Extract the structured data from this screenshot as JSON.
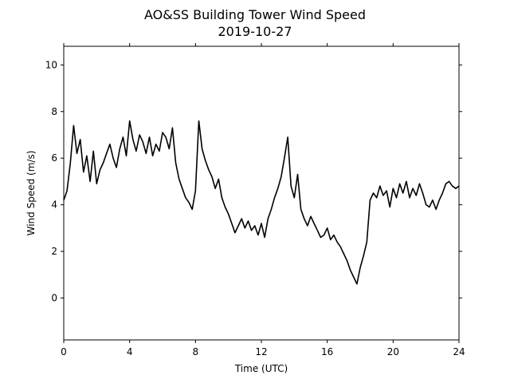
{
  "chart_data": {
    "type": "line",
    "title": "AO&SS Building Tower Wind Speed",
    "subtitle": "2019-10-27",
    "xlabel": "Time (UTC)",
    "ylabel": "Wind Speed (m/s)",
    "xlim": [
      0,
      24
    ],
    "ylim": [
      -1.8,
      10.8
    ],
    "xticks": [
      0,
      4,
      8,
      12,
      16,
      20,
      24
    ],
    "yticks": [
      0,
      2,
      4,
      6,
      8,
      10
    ],
    "grid": false,
    "line_color": "#000000",
    "series": [
      {
        "x": [
          0.0,
          0.2,
          0.4,
          0.6,
          0.8,
          1.0,
          1.2,
          1.4,
          1.6,
          1.8,
          2.0,
          2.2,
          2.4,
          2.6,
          2.8,
          3.0,
          3.2,
          3.4,
          3.6,
          3.8,
          4.0,
          4.2,
          4.4,
          4.6,
          4.8,
          5.0,
          5.2,
          5.4,
          5.6,
          5.8,
          6.0,
          6.2,
          6.4,
          6.6,
          6.8,
          7.0,
          7.2,
          7.4,
          7.6,
          7.8,
          8.0,
          8.2,
          8.4,
          8.6,
          8.8,
          9.0,
          9.2,
          9.4,
          9.6,
          9.8,
          10.0,
          10.2,
          10.4,
          10.6,
          10.8,
          11.0,
          11.2,
          11.4,
          11.6,
          11.8,
          12.0,
          12.2,
          12.4,
          12.6,
          12.8,
          13.0,
          13.2,
          13.4,
          13.6,
          13.8,
          14.0,
          14.2,
          14.4,
          14.6,
          14.8,
          15.0,
          15.2,
          15.4,
          15.6,
          15.8,
          16.0,
          16.2,
          16.4,
          16.6,
          16.8,
          17.0,
          17.2,
          17.4,
          17.6,
          17.8,
          18.0,
          18.2,
          18.4,
          18.6,
          18.8,
          19.0,
          19.2,
          19.4,
          19.6,
          19.8,
          20.0,
          20.2,
          20.4,
          20.6,
          20.8,
          21.0,
          21.2,
          21.4,
          21.6,
          21.8,
          22.0,
          22.2,
          22.4,
          22.6,
          22.8,
          23.0,
          23.2,
          23.4,
          23.6,
          23.8,
          24.0
        ],
        "values": [
          4.2,
          4.6,
          5.8,
          7.4,
          6.2,
          6.8,
          5.4,
          6.1,
          5.0,
          6.3,
          4.9,
          5.5,
          5.8,
          6.2,
          6.6,
          6.0,
          5.6,
          6.4,
          6.9,
          6.1,
          7.6,
          6.8,
          6.3,
          7.0,
          6.7,
          6.2,
          6.9,
          6.1,
          6.6,
          6.3,
          7.1,
          6.9,
          6.4,
          7.3,
          5.8,
          5.1,
          4.7,
          4.3,
          4.1,
          3.8,
          4.6,
          7.6,
          6.4,
          5.9,
          5.5,
          5.2,
          4.7,
          5.1,
          4.3,
          3.9,
          3.6,
          3.2,
          2.8,
          3.1,
          3.4,
          3.0,
          3.3,
          2.9,
          3.1,
          2.7,
          3.2,
          2.6,
          3.4,
          3.8,
          4.3,
          4.7,
          5.2,
          6.0,
          6.9,
          4.8,
          4.3,
          5.3,
          3.8,
          3.4,
          3.1,
          3.5,
          3.2,
          2.9,
          2.6,
          2.7,
          3.0,
          2.5,
          2.7,
          2.4,
          2.2,
          1.9,
          1.6,
          1.2,
          0.9,
          0.6,
          1.3,
          1.8,
          2.4,
          4.2,
          4.5,
          4.3,
          4.8,
          4.4,
          4.6,
          3.9,
          4.7,
          4.3,
          4.9,
          4.5,
          5.0,
          4.3,
          4.7,
          4.4,
          4.9,
          4.5,
          4.0,
          3.9,
          4.2,
          3.8,
          4.2,
          4.5,
          4.9,
          5.0,
          4.8,
          4.7,
          4.8
        ]
      }
    ]
  }
}
